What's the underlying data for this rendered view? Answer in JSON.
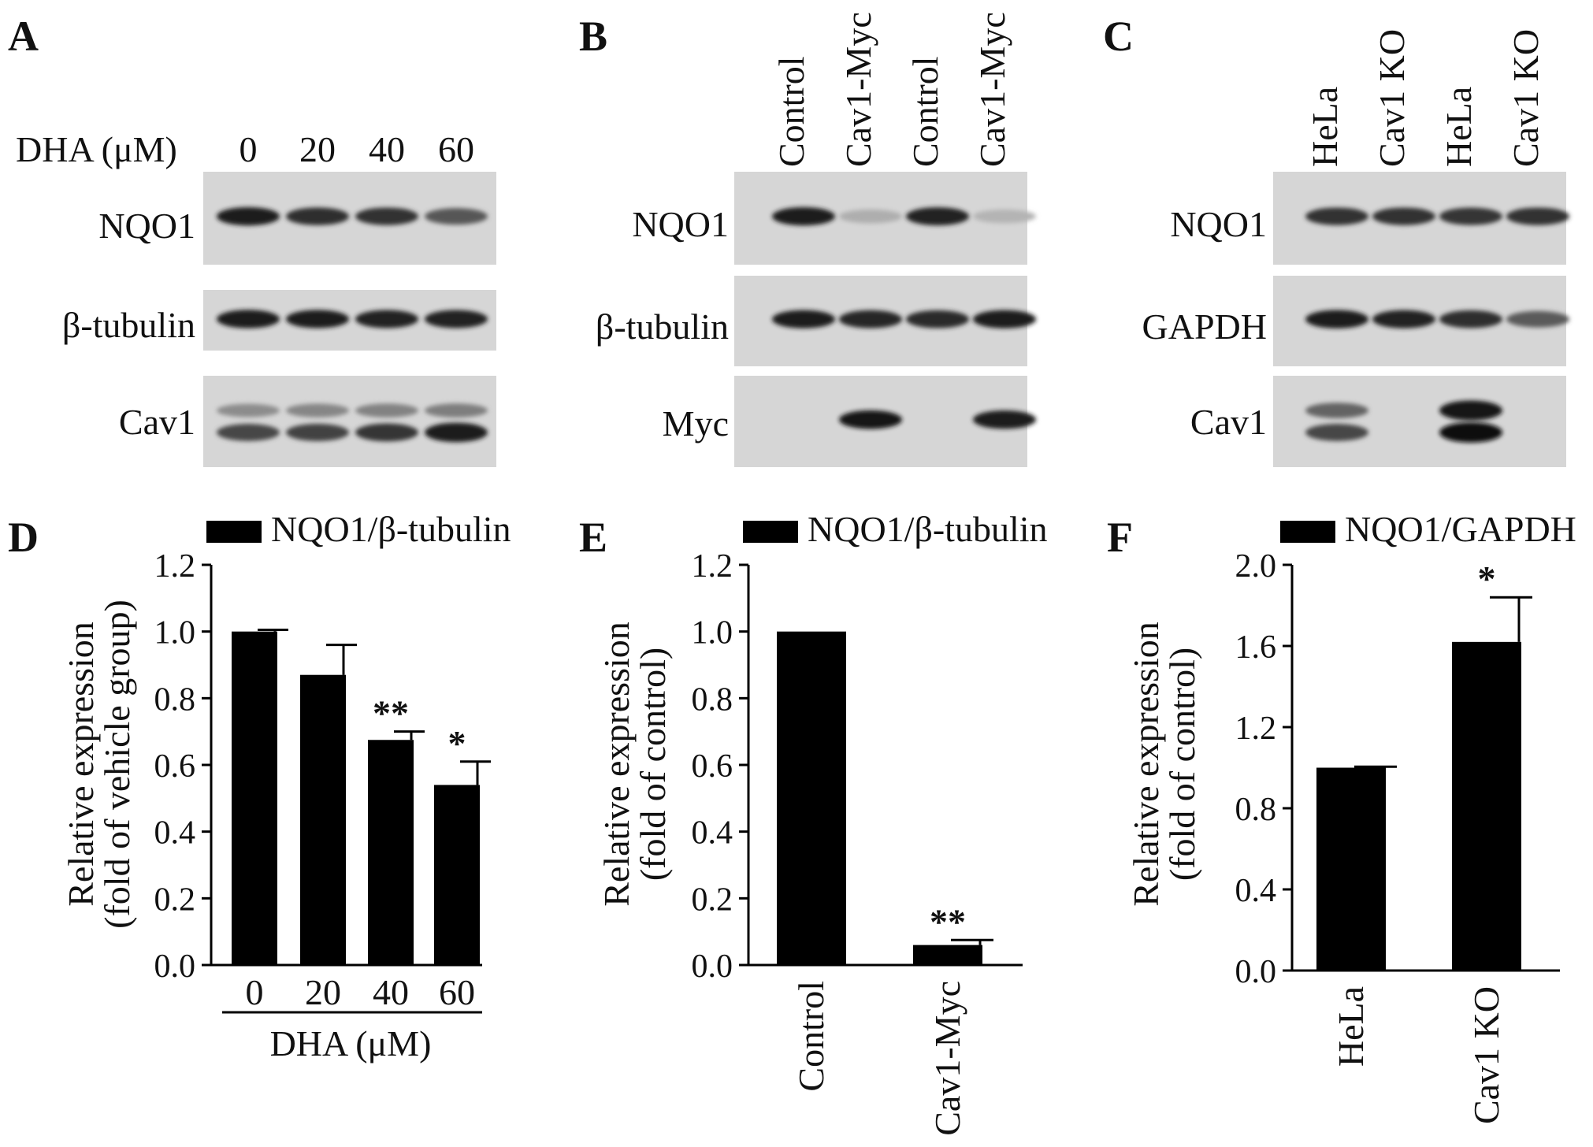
{
  "panels": {
    "A": {
      "letter": "A",
      "header_label": "DHA (μM)",
      "lanes": [
        "0",
        "20",
        "40",
        "60"
      ],
      "rows": [
        {
          "label": "NQO1",
          "intensities": [
            [
              0.92
            ],
            [
              0.82
            ],
            [
              0.8
            ],
            [
              0.62
            ]
          ]
        },
        {
          "label": "β-tubulin",
          "intensities": [
            [
              0.92
            ],
            [
              0.9
            ],
            [
              0.88
            ],
            [
              0.88
            ]
          ]
        },
        {
          "label": "Cav1",
          "intensities": [
            [
              0.35,
              0.7
            ],
            [
              0.38,
              0.72
            ],
            [
              0.4,
              0.78
            ],
            [
              0.42,
              0.9
            ]
          ]
        }
      ]
    },
    "B": {
      "letter": "B",
      "lanes": [
        "Control",
        "Cav1-Myc",
        "Control",
        "Cav1-Myc"
      ],
      "rows": [
        {
          "label": "NQO1",
          "intensities": [
            [
              0.9
            ],
            [
              0.18
            ],
            [
              0.88
            ],
            [
              0.15
            ]
          ]
        },
        {
          "label": "β-tubulin",
          "intensities": [
            [
              0.9
            ],
            [
              0.86
            ],
            [
              0.84
            ],
            [
              0.9
            ]
          ]
        },
        {
          "label": "Myc",
          "intensities": [
            [
              0.0
            ],
            [
              0.95
            ],
            [
              0.0
            ],
            [
              0.92
            ]
          ]
        }
      ]
    },
    "C": {
      "letter": "C",
      "lanes": [
        "HeLa",
        "Cav1 KO",
        "HeLa",
        "Cav1 KO"
      ],
      "rows": [
        {
          "label": "NQO1",
          "intensities": [
            [
              0.8
            ],
            [
              0.8
            ],
            [
              0.78
            ],
            [
              0.8
            ]
          ]
        },
        {
          "label": "GAPDH",
          "intensities": [
            [
              0.92
            ],
            [
              0.88
            ],
            [
              0.82
            ],
            [
              0.6
            ]
          ]
        },
        {
          "label": "Cav1",
          "intensities": [
            [
              0.55,
              0.7
            ],
            [
              0.0,
              0.0
            ],
            [
              0.95,
              0.98
            ],
            [
              0.0,
              0.0
            ]
          ]
        }
      ]
    }
  },
  "chart_data": [
    {
      "panel": "D",
      "type": "bar",
      "legend": "NQO1/β-tubulin",
      "categories": [
        "0",
        "20",
        "40",
        "60"
      ],
      "values": [
        1.0,
        0.87,
        0.675,
        0.54
      ],
      "errors": [
        0.005,
        0.09,
        0.025,
        0.07
      ],
      "significance": [
        "",
        "",
        "**",
        "*"
      ],
      "ylabel_line1": "Relative expression",
      "ylabel_line2": "(fold of vehicle group)",
      "xlabel": "DHA (μM)",
      "ylim": [
        0,
        1.2
      ],
      "yticks": [
        0.0,
        0.2,
        0.4,
        0.6,
        0.8,
        1.0,
        1.2
      ]
    },
    {
      "panel": "E",
      "type": "bar",
      "legend": "NQO1/β-tubulin",
      "categories": [
        "Control",
        "Cav1-Myc"
      ],
      "values": [
        1.0,
        0.06
      ],
      "errors": [
        0.003,
        0.015
      ],
      "significance": [
        "",
        "**"
      ],
      "ylabel_line1": "Relative expression",
      "ylabel_line2": "(fold of control)",
      "xlabel": "",
      "ylim": [
        0,
        1.2
      ],
      "yticks": [
        0.0,
        0.2,
        0.4,
        0.6,
        0.8,
        1.0,
        1.2
      ]
    },
    {
      "panel": "F",
      "type": "bar",
      "legend": "NQO1/GAPDH",
      "categories": [
        "HeLa",
        "Cav1 KO"
      ],
      "values": [
        1.0,
        1.62
      ],
      "errors": [
        0.005,
        0.22
      ],
      "significance": [
        "",
        "*"
      ],
      "ylabel_line1": "Relative expression",
      "ylabel_line2": "(fold of control)",
      "xlabel": "",
      "ylim": [
        0,
        2.0
      ],
      "yticks": [
        0.0,
        0.4,
        0.8,
        1.2,
        1.6,
        2.0
      ]
    }
  ]
}
